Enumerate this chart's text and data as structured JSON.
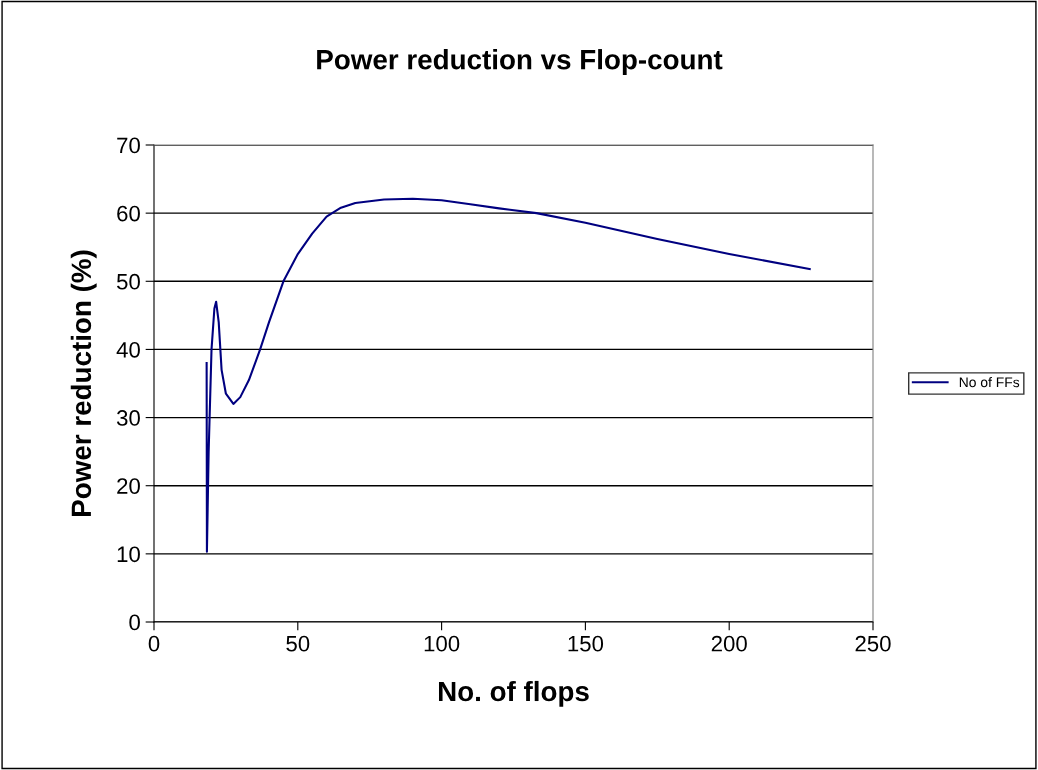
{
  "chart_data": {
    "type": "line",
    "title": "Power reduction vs Flop-count",
    "xlabel": "No. of flops",
    "ylabel": "Power reduction (%)",
    "xlim": [
      0,
      250
    ],
    "xticks": [
      0,
      50,
      100,
      150,
      200,
      250
    ],
    "ylim": [
      0,
      70
    ],
    "yticks": [
      0,
      10,
      20,
      30,
      40,
      50,
      60,
      70
    ],
    "grid": "y",
    "legend": "right",
    "marker": "none",
    "line_style": "solid",
    "series": [
      {
        "name": "No of FFs",
        "color": "#000080",
        "x": [
          18.3,
          18.4,
          19,
          20,
          21,
          21.6,
          22.5,
          23.5,
          25,
          27.6,
          30,
          33,
          36.9,
          40,
          45,
          50,
          55,
          60,
          65,
          70,
          80,
          90,
          100,
          110,
          120,
          133,
          150,
          175,
          200,
          228
        ],
        "values": [
          38,
          10.3,
          25,
          40,
          46,
          47,
          44,
          37,
          33.5,
          32,
          33,
          35.5,
          40,
          44,
          50,
          54,
          57,
          59.5,
          60.8,
          61.5,
          62,
          62.1,
          61.9,
          61.3,
          60.7,
          60,
          58.6,
          56.2,
          54,
          51.8
        ]
      }
    ]
  }
}
